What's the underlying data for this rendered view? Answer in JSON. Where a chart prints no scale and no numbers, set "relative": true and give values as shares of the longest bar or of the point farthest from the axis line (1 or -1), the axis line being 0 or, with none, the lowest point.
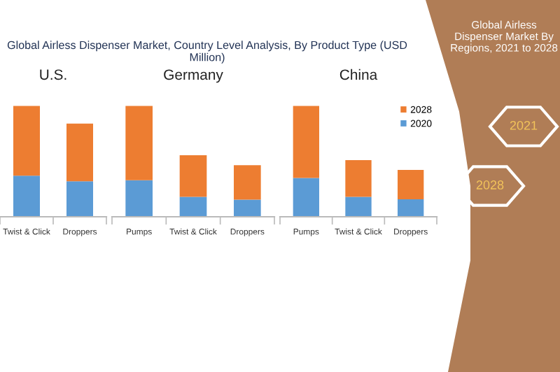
{
  "chart_data": [
    {
      "type": "bar",
      "stacked": true,
      "relative": true,
      "title": "U.S.",
      "categories": [
        "Twist & Click",
        "Droppers"
      ],
      "legend": false,
      "annotations": [
        "Global Airless Dispenser Market, Country Level Analysis, By Product Type (USD Million)"
      ],
      "series": [
        {
          "color": "#5b9bd5",
          "values": [
            0.37,
            0.32
          ]
        },
        {
          "color": "#ed7d31",
          "values": [
            0.63,
            0.52
          ]
        }
      ]
    },
    {
      "type": "bar",
      "stacked": true,
      "relative": true,
      "title": "Germany",
      "categories": [
        "Pumps",
        "Twist & Click",
        "Droppers"
      ],
      "legend": false,
      "series": [
        {
          "color": "#5b9bd5",
          "values": [
            0.33,
            0.18,
            0.155
          ]
        },
        {
          "color": "#ed7d31",
          "values": [
            0.67,
            0.375,
            0.31
          ]
        }
      ]
    },
    {
      "type": "bar",
      "stacked": true,
      "relative": true,
      "title": "China",
      "categories": [
        "Pumps",
        "Twist & Click",
        "Droppers"
      ],
      "legend": "right",
      "annotations": [
        "Global Airless Dispenser Market By Regions, 2021 to 2028",
        "2021",
        "2028"
      ],
      "series": [
        {
          "name": "2020",
          "color": "#5b9bd5",
          "values": [
            0.35,
            0.18,
            0.157
          ]
        },
        {
          "name": "2028",
          "color": "#ed7d31",
          "values": [
            0.65,
            0.33,
            0.265
          ]
        }
      ]
    }
  ]
}
